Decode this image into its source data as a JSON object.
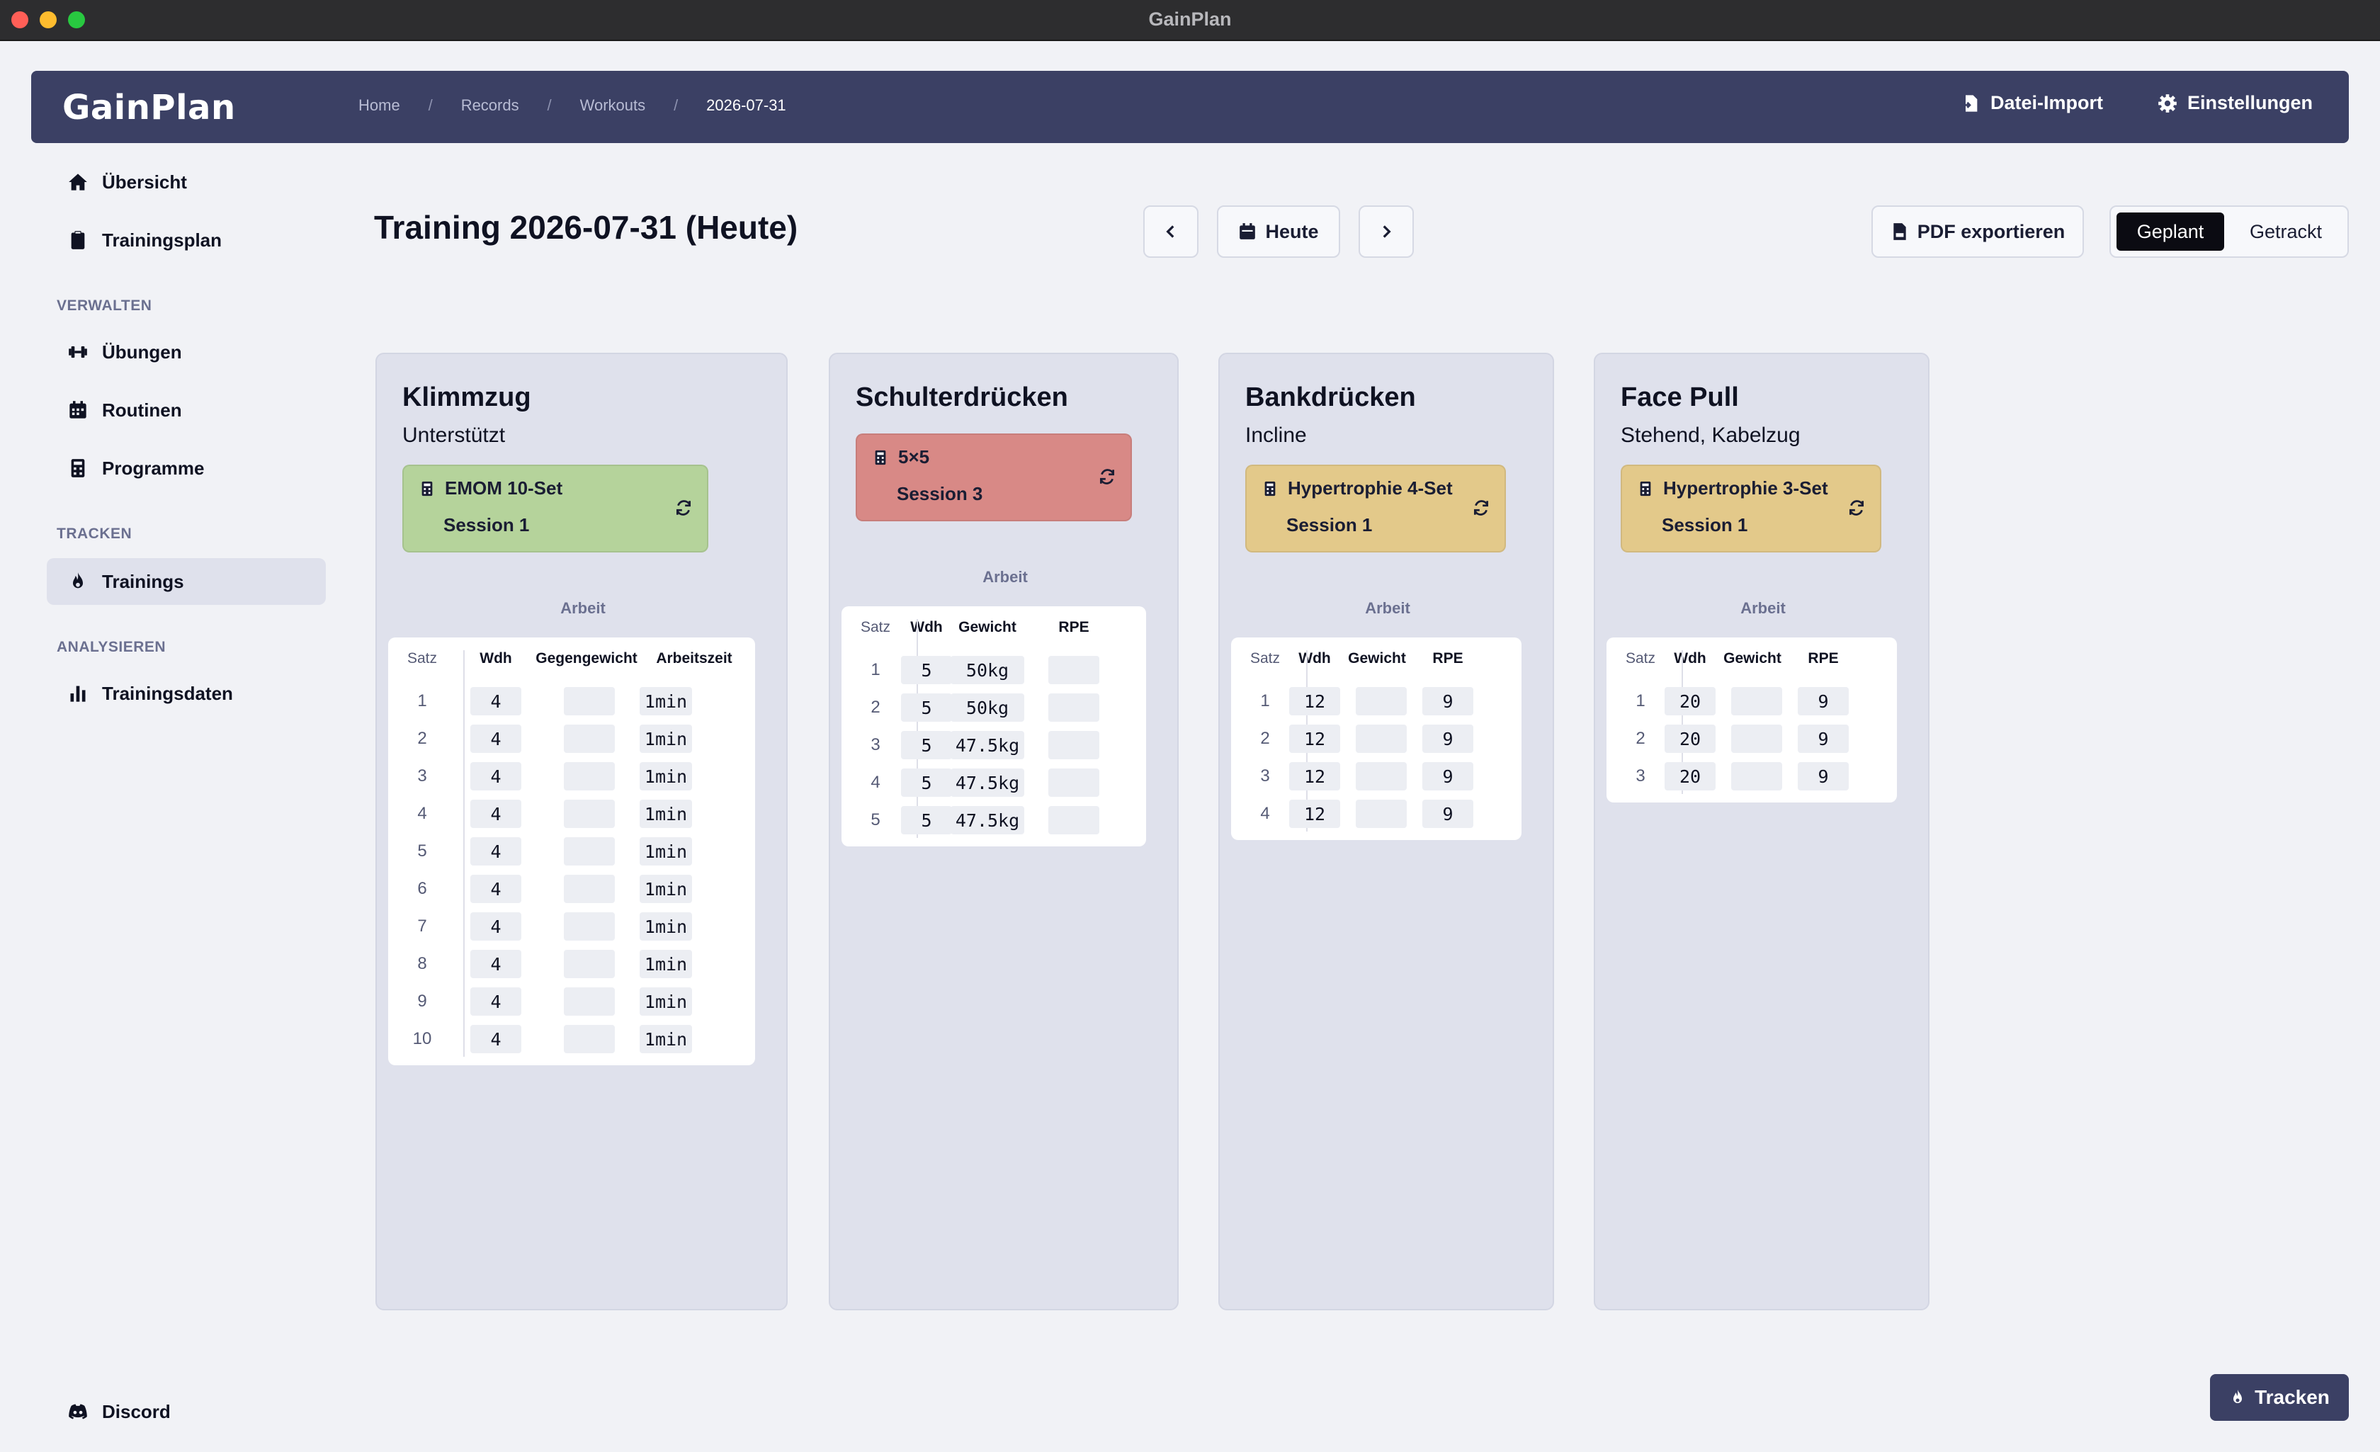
{
  "window": {
    "title": "GainPlan"
  },
  "header": {
    "brand": "GainPlan",
    "breadcrumb": [
      "Home",
      "Records",
      "Workouts",
      "2026-07-31"
    ],
    "breadcrumb_sep": "/",
    "import_label": "Datei-Import",
    "settings_label": "Einstellungen"
  },
  "sidebar": {
    "top": [
      {
        "label": "Übersicht",
        "icon": "home-icon"
      },
      {
        "label": "Trainingsplan",
        "icon": "clipboard-icon"
      }
    ],
    "sections": [
      {
        "title": "VERWALTEN",
        "items": [
          {
            "label": "Übungen",
            "icon": "dumbbell-icon"
          },
          {
            "label": "Routinen",
            "icon": "calendar-icon"
          },
          {
            "label": "Programme",
            "icon": "calculator-icon"
          }
        ]
      },
      {
        "title": "TRACKEN",
        "items": [
          {
            "label": "Trainings",
            "icon": "flame-icon",
            "active": true
          }
        ]
      },
      {
        "title": "ANALYSIEREN",
        "items": [
          {
            "label": "Trainingsdaten",
            "icon": "bar-chart-icon"
          }
        ]
      }
    ],
    "footer": {
      "label": "Discord",
      "icon": "discord-icon"
    }
  },
  "page": {
    "title": "Training 2026-07-31 (Heute)",
    "today_label": "Heute",
    "pdf_label": "PDF exportieren",
    "toggle": {
      "planned": "Geplant",
      "tracked": "Getrackt",
      "selected": "Geplant"
    },
    "track_label": "Tracken"
  },
  "colors": {
    "green": "#b5d39b",
    "red": "#d88986",
    "yellow": "#e3c98a"
  },
  "exercises": [
    {
      "name": "Klimmzug",
      "variant": "Unterstützt",
      "program": {
        "name": "EMOM 10-Set",
        "session": "Session 1",
        "color": "green"
      },
      "section_label": "Arbeit",
      "columns": [
        "Satz",
        "Wdh",
        "Gegengewicht",
        "Arbeitszeit"
      ],
      "rows": [
        [
          "1",
          "4",
          "",
          "1min"
        ],
        [
          "2",
          "4",
          "",
          "1min"
        ],
        [
          "3",
          "4",
          "",
          "1min"
        ],
        [
          "4",
          "4",
          "",
          "1min"
        ],
        [
          "5",
          "4",
          "",
          "1min"
        ],
        [
          "6",
          "4",
          "",
          "1min"
        ],
        [
          "7",
          "4",
          "",
          "1min"
        ],
        [
          "8",
          "4",
          "",
          "1min"
        ],
        [
          "9",
          "4",
          "",
          "1min"
        ],
        [
          "10",
          "4",
          "",
          "1min"
        ]
      ]
    },
    {
      "name": "Schulterdrücken",
      "variant": "",
      "program": {
        "name": "5×5",
        "session": "Session 3",
        "color": "red"
      },
      "section_label": "Arbeit",
      "columns": [
        "Satz",
        "Wdh",
        "Gewicht",
        "RPE"
      ],
      "rows": [
        [
          "1",
          "5",
          "50kg",
          ""
        ],
        [
          "2",
          "5",
          "50kg",
          ""
        ],
        [
          "3",
          "5",
          "47.5kg",
          ""
        ],
        [
          "4",
          "5",
          "47.5kg",
          ""
        ],
        [
          "5",
          "5",
          "47.5kg",
          ""
        ]
      ]
    },
    {
      "name": "Bankdrücken",
      "variant": "Incline",
      "program": {
        "name": "Hypertrophie 4-Set",
        "session": "Session 1",
        "color": "yellow"
      },
      "section_label": "Arbeit",
      "columns": [
        "Satz",
        "Wdh",
        "Gewicht",
        "RPE"
      ],
      "rows": [
        [
          "1",
          "12",
          "",
          "9"
        ],
        [
          "2",
          "12",
          "",
          "9"
        ],
        [
          "3",
          "12",
          "",
          "9"
        ],
        [
          "4",
          "12",
          "",
          "9"
        ]
      ]
    },
    {
      "name": "Face Pull",
      "variant": "Stehend, Kabelzug",
      "program": {
        "name": "Hypertrophie 3-Set",
        "session": "Session 1",
        "color": "yellow"
      },
      "section_label": "Arbeit",
      "columns": [
        "Satz",
        "Wdh",
        "Gewicht",
        "RPE"
      ],
      "rows": [
        [
          "1",
          "20",
          "",
          "9"
        ],
        [
          "2",
          "20",
          "",
          "9"
        ],
        [
          "3",
          "20",
          "",
          "9"
        ]
      ]
    }
  ]
}
